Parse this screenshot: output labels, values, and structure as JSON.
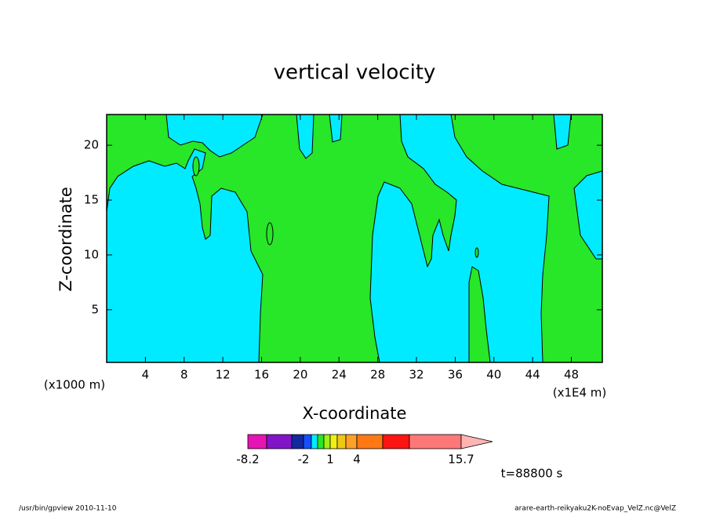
{
  "chart_data": {
    "type": "contour",
    "title": "vertical velocity",
    "x_label": "X-coordinate",
    "y_label": "Z-coordinate",
    "xlim": [
      0,
      51.2
    ],
    "ylim": [
      0.2,
      22.8
    ],
    "xticks": [
      4,
      8,
      12,
      16,
      20,
      24,
      28,
      32,
      36,
      40,
      44,
      48
    ],
    "yticks": [
      5,
      10,
      15,
      20
    ],
    "x_unit_left": "(x1000 m)",
    "x_unit_right": "(x1E4 m)",
    "colorbar": {
      "levels": [
        -8.2,
        -6,
        -4,
        -2,
        -1.25,
        -0.5,
        0.25,
        1,
        2,
        3,
        4,
        8,
        12,
        15.7
      ],
      "colors": [
        "#e614b4",
        "#8214c8",
        "#1428a0",
        "#1450ff",
        "#00ebff",
        "#28e628",
        "#a0f014",
        "#f0f014",
        "#f0c814",
        "#ffa028",
        "#ff7814",
        "#ff1414",
        "#ff7878",
        "#ffb4b4"
      ],
      "ticks": [
        -8.2,
        -2,
        1,
        4,
        15.7
      ]
    },
    "time_label": "t=88800 s",
    "footer_left": "/usr/bin/gpview   2010-11-10",
    "footer_right": "arare-earth-reikyaku2K-noEvap_VelZ.nc@VelZ"
  }
}
